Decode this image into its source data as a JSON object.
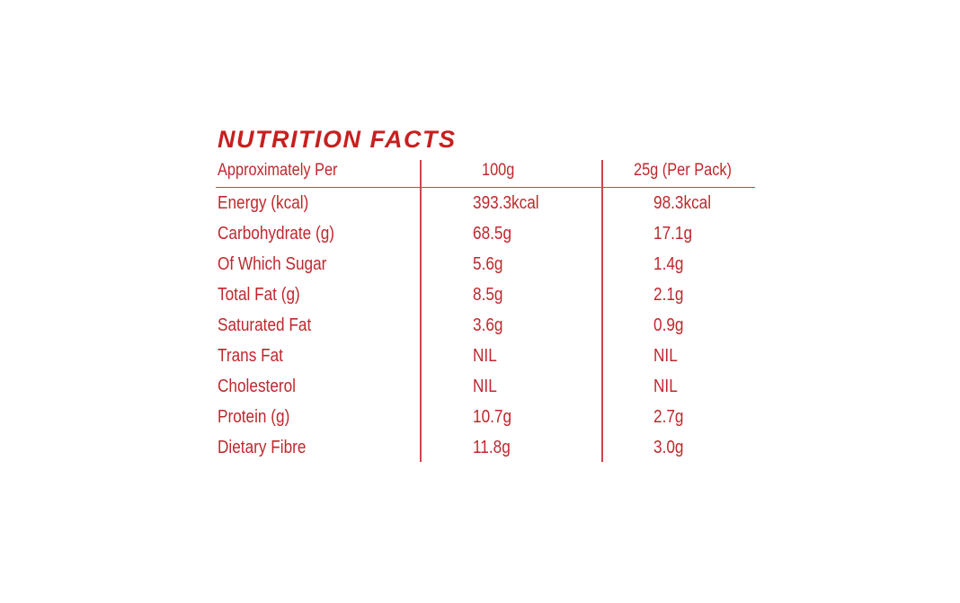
{
  "title": "NUTRITION FACTS",
  "colors": {
    "text": "#c0272d",
    "title": "#c81f1f",
    "rule": "#c8484a",
    "stripe_start": "#f2b91f",
    "stripe_end": "#fbf4de"
  },
  "header": {
    "label": "Approximately Per",
    "col1": "100g",
    "col2": "25g (Per Pack)"
  },
  "rows": [
    {
      "label": "Energy (kcal)",
      "v1": "393.3kcal",
      "v2": "98.3kcal"
    },
    {
      "label": "Carbohydrate (g)",
      "v1": "68.5g",
      "v2": "17.1g"
    },
    {
      "label": "Of Which Sugar",
      "v1": "5.6g",
      "v2": "1.4g"
    },
    {
      "label": "Total Fat (g)",
      "v1": "8.5g",
      "v2": "2.1g"
    },
    {
      "label": "Saturated Fat",
      "v1": "3.6g",
      "v2": "0.9g"
    },
    {
      "label": "Trans Fat",
      "v1": "NIL",
      "v2": "NIL"
    },
    {
      "label": "Cholesterol",
      "v1": "NIL",
      "v2": "NIL"
    },
    {
      "label": "Protein (g)",
      "v1": "10.7g",
      "v2": "2.7g"
    },
    {
      "label": "Dietary Fibre",
      "v1": "11.8g",
      "v2": "3.0g"
    }
  ]
}
